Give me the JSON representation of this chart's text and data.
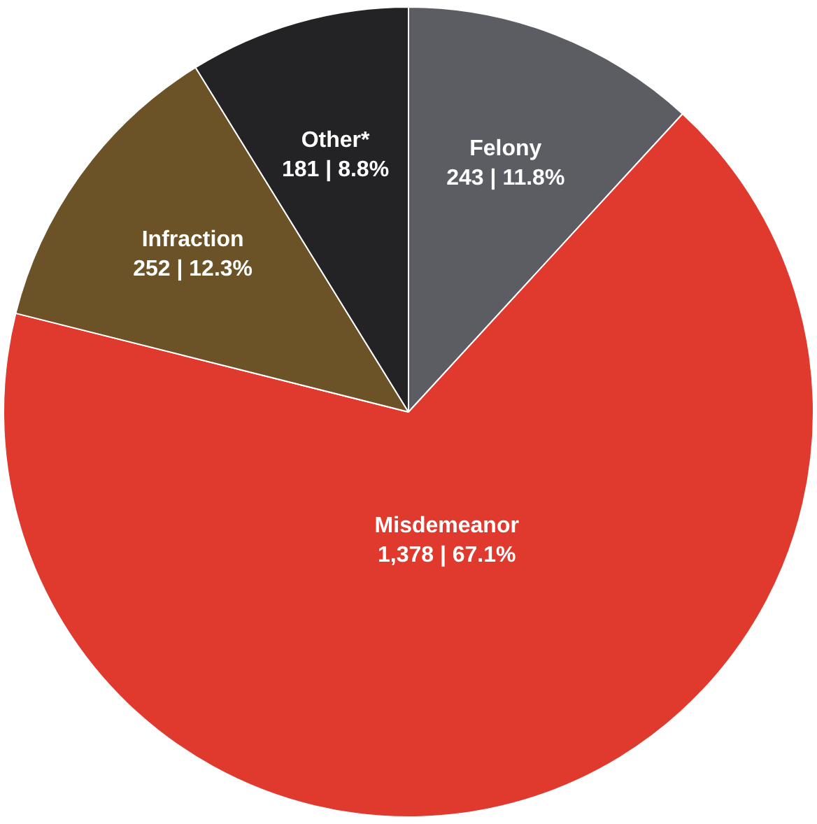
{
  "chart_data": {
    "type": "pie",
    "categories": [
      "Felony",
      "Misdemeanor",
      "Infraction",
      "Other*"
    ],
    "values": [
      243,
      1378,
      252,
      181
    ],
    "value_labels": [
      "243 | 11.8%",
      "1,378 | 67.1%",
      "252 | 12.3%",
      "181 | 8.8%"
    ],
    "colors": [
      "#5b5d63",
      "#e03a2e",
      "#6b5227",
      "#232325"
    ],
    "legend": false
  }
}
